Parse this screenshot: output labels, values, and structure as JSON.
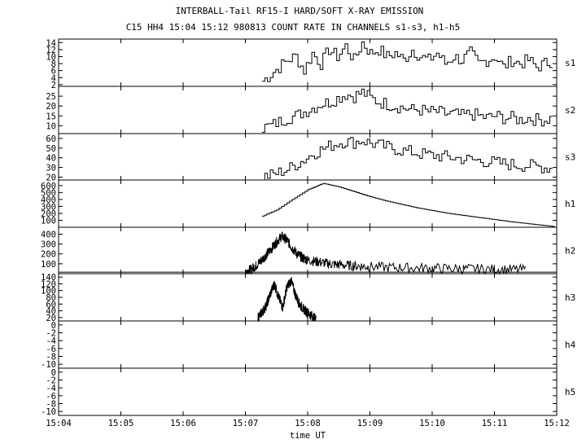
{
  "chart_data": {
    "type": "line",
    "title": "INTERBALL-Tail RF15-I HARD/SOFT X-RAY EMISSION",
    "subtitle": "C15 HH4 15:04 15:12 980813  COUNT RATE IN CHANNELS s1-s3, h1-h5",
    "xlabel": "time UT",
    "x_ticks": [
      "15:04",
      "15:05",
      "15:06",
      "15:07",
      "15:08",
      "15:09",
      "15:10",
      "15:11",
      "15:12"
    ],
    "xlim": [
      "15:04",
      "15:12"
    ],
    "grid": false,
    "panels": [
      {
        "name": "s1",
        "yticks": [
          2,
          4,
          6,
          8,
          10,
          12,
          14
        ],
        "ylim": [
          1.5,
          15
        ],
        "x": [
          "15:07:16",
          "15:07:24",
          "15:07:32",
          "15:07:40",
          "15:07:48",
          "15:07:56",
          "15:08:04",
          "15:08:12",
          "15:08:20",
          "15:08:28",
          "15:08:36",
          "15:08:44",
          "15:08:52",
          "15:09:00",
          "15:09:08",
          "15:09:16",
          "15:09:24",
          "15:09:32",
          "15:09:40",
          "15:09:48",
          "15:09:56",
          "15:10:04",
          "15:10:12",
          "15:10:20",
          "15:10:28",
          "15:10:36",
          "15:10:44",
          "15:10:52",
          "15:11:00",
          "15:11:08",
          "15:11:16",
          "15:11:24",
          "15:11:32",
          "15:11:40",
          "15:11:48",
          "15:11:56"
        ],
        "values": [
          3,
          5,
          7,
          9,
          10,
          6,
          11,
          8,
          12,
          10,
          13,
          9,
          14,
          11,
          12,
          10,
          11,
          9,
          12,
          10,
          9,
          11,
          8,
          10,
          9,
          11,
          8,
          9,
          10,
          7,
          9,
          8,
          9,
          7,
          8,
          9
        ]
      },
      {
        "name": "s2",
        "yticks": [
          10,
          15,
          20,
          25
        ],
        "ylim": [
          6,
          30
        ],
        "x": [
          "15:07:16",
          "15:07:24",
          "15:07:32",
          "15:07:40",
          "15:07:48",
          "15:07:56",
          "15:08:04",
          "15:08:12",
          "15:08:20",
          "15:08:28",
          "15:08:36",
          "15:08:44",
          "15:08:52",
          "15:09:00",
          "15:09:08",
          "15:09:16",
          "15:09:24",
          "15:09:32",
          "15:09:40",
          "15:09:48",
          "15:09:56",
          "15:10:04",
          "15:10:12",
          "15:10:20",
          "15:10:28",
          "15:10:36",
          "15:10:44",
          "15:10:52",
          "15:11:00",
          "15:11:08",
          "15:11:16",
          "15:11:24",
          "15:11:32",
          "15:11:40",
          "15:11:48",
          "15:11:56"
        ],
        "values": [
          9,
          10,
          12,
          14,
          15,
          17,
          19,
          21,
          22,
          24,
          26,
          25,
          27,
          24,
          22,
          21,
          20,
          19,
          18,
          18,
          17,
          17,
          16,
          16,
          15,
          16,
          15,
          14,
          15,
          14,
          14,
          13,
          14,
          13,
          13,
          14
        ]
      },
      {
        "name": "s3",
        "yticks": [
          20,
          30,
          40,
          50,
          60
        ],
        "ylim": [
          17,
          65
        ],
        "x": [
          "15:07:16",
          "15:07:24",
          "15:07:32",
          "15:07:40",
          "15:07:48",
          "15:07:56",
          "15:08:04",
          "15:08:12",
          "15:08:20",
          "15:08:28",
          "15:08:36",
          "15:08:44",
          "15:08:52",
          "15:09:00",
          "15:09:08",
          "15:09:16",
          "15:09:24",
          "15:09:32",
          "15:09:40",
          "15:09:48",
          "15:09:56",
          "15:10:04",
          "15:10:12",
          "15:10:20",
          "15:10:28",
          "15:10:36",
          "15:10:44",
          "15:10:52",
          "15:11:00",
          "15:11:08",
          "15:11:16",
          "15:11:24",
          "15:11:32",
          "15:11:40",
          "15:11:48",
          "15:11:56"
        ],
        "values": [
          20,
          22,
          25,
          28,
          33,
          38,
          44,
          48,
          52,
          55,
          57,
          56,
          58,
          55,
          53,
          51,
          49,
          47,
          46,
          44,
          43,
          42,
          41,
          40,
          39,
          38,
          37,
          36,
          35,
          34,
          33,
          32,
          32,
          31,
          30,
          29
        ]
      },
      {
        "name": "h1",
        "yticks": [
          100,
          200,
          300,
          400,
          500,
          600
        ],
        "ylim": [
          0,
          680
        ],
        "x": [
          "15:07:16",
          "15:07:30",
          "15:07:45",
          "15:08:00",
          "15:08:10",
          "15:08:15",
          "15:08:30",
          "15:08:45",
          "15:09:00",
          "15:09:15",
          "15:09:30",
          "15:09:45",
          "15:10:00",
          "15:10:15",
          "15:10:30",
          "15:10:45",
          "15:11:00",
          "15:11:15",
          "15:11:30",
          "15:11:45",
          "15:11:58"
        ],
        "values": [
          160,
          250,
          400,
          540,
          600,
          630,
          580,
          510,
          440,
          380,
          330,
          280,
          240,
          200,
          170,
          140,
          110,
          80,
          55,
          30,
          10
        ]
      },
      {
        "name": "h2",
        "yticks": [
          100,
          200,
          300,
          400
        ],
        "ylim": [
          0,
          470
        ],
        "x": [
          "15:07:00",
          "15:07:05",
          "15:07:10",
          "15:07:15",
          "15:07:20",
          "15:07:25",
          "15:07:30",
          "15:07:35",
          "15:07:40",
          "15:07:45",
          "15:07:50",
          "15:07:55",
          "15:08:00",
          "15:08:10",
          "15:08:20",
          "15:08:30",
          "15:08:45",
          "15:09:00",
          "15:09:30",
          "15:10:00",
          "15:10:30",
          "15:11:00",
          "15:11:30"
        ],
        "values": [
          20,
          40,
          80,
          130,
          190,
          250,
          320,
          380,
          340,
          260,
          200,
          160,
          140,
          120,
          100,
          90,
          80,
          70,
          60,
          55,
          50,
          45,
          40
        ]
      },
      {
        "name": "h3",
        "yticks": [
          20,
          40,
          60,
          80,
          100,
          120,
          140
        ],
        "ylim": [
          10,
          150
        ],
        "x": [
          "15:07:12",
          "15:07:16",
          "15:07:20",
          "15:07:24",
          "15:07:28",
          "15:07:32",
          "15:07:36",
          "15:07:40",
          "15:07:44",
          "15:07:48",
          "15:07:52",
          "15:07:56",
          "15:08:00",
          "15:08:04",
          "15:08:08"
        ],
        "values": [
          20,
          35,
          55,
          90,
          120,
          80,
          50,
          110,
          130,
          90,
          60,
          45,
          35,
          25,
          15
        ]
      },
      {
        "name": "h4",
        "yticks": [
          -10,
          -8,
          -6,
          -4,
          -2,
          0
        ],
        "ylim": [
          -11,
          1
        ],
        "x": [],
        "values": []
      },
      {
        "name": "h5",
        "yticks": [
          -10,
          -8,
          -6,
          -4,
          -2,
          0
        ],
        "ylim": [
          -11,
          1
        ],
        "x": [],
        "values": []
      }
    ]
  }
}
